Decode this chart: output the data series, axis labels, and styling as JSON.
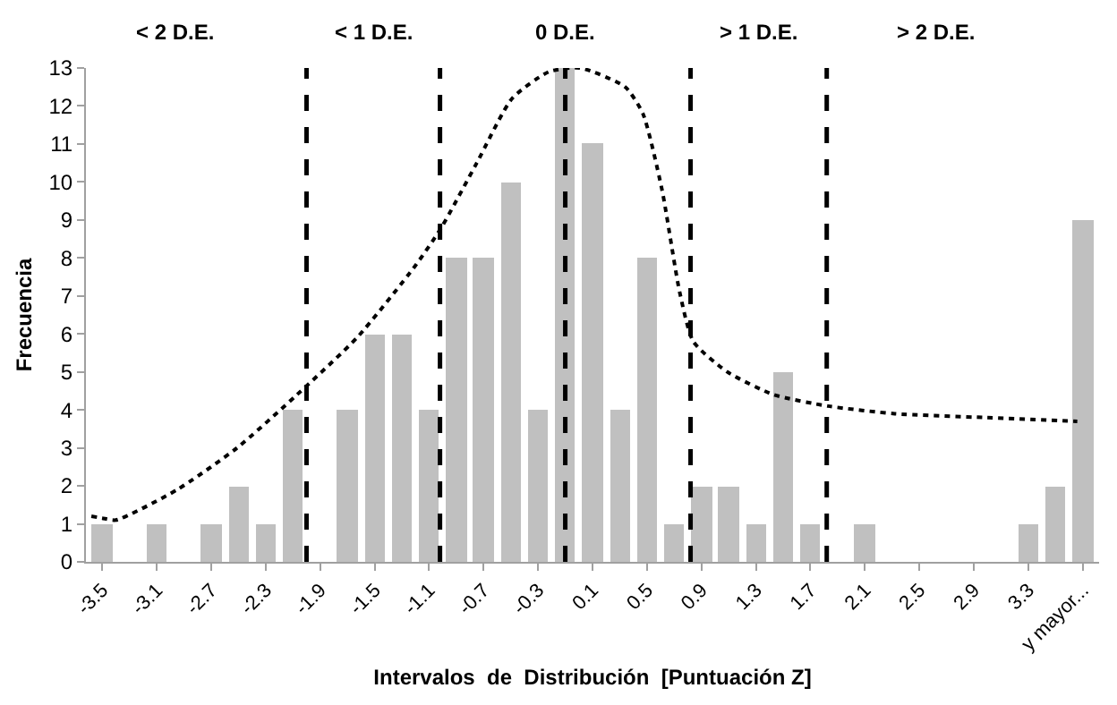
{
  "chart_data": {
    "type": "bar",
    "xlabel": "Intervalos  de  Distribución  [Puntuación Z]",
    "ylabel": "Frecuencia",
    "x": [
      -3.5,
      -3.3,
      -3.1,
      -2.9,
      -2.7,
      -2.5,
      -2.3,
      -2.1,
      -1.9,
      -1.7,
      -1.5,
      -1.3,
      -1.1,
      -0.9,
      -0.7,
      -0.5,
      -0.3,
      -0.1,
      0.1,
      0.3,
      0.5,
      0.7,
      0.9,
      1.1,
      1.3,
      1.5,
      1.7,
      1.9,
      2.1,
      2.3,
      2.5,
      2.7,
      2.9,
      3.1,
      3.3,
      3.5,
      3.7
    ],
    "series": [
      {
        "color": "#c0c0c0",
        "values": [
          1,
          0,
          1,
          0,
          1,
          2,
          1,
          4,
          0,
          4,
          6,
          6,
          4,
          8,
          8,
          10,
          4,
          13,
          11,
          4,
          8,
          1,
          2,
          2,
          1,
          5,
          1,
          0,
          1,
          0,
          0,
          0,
          0,
          0,
          1,
          2,
          9
        ]
      },
      {
        "type": "line",
        "color": "#000000",
        "line_style": "dotted",
        "x": [
          -3.58,
          -3.5,
          -3.4,
          -2.95,
          -2.51,
          -2.07,
          -1.63,
          -1.2,
          -1.01,
          -0.75,
          -0.49,
          -0.22,
          0.01,
          0.34,
          0.47,
          0.61,
          0.74,
          0.84,
          1.09,
          1.43,
          1.83,
          2.32,
          2.97,
          3.66
        ],
        "values": [
          1.2,
          1.15,
          1.1,
          1.9,
          3.0,
          4.4,
          5.9,
          7.8,
          8.8,
          10.5,
          12.2,
          12.9,
          13,
          12.5,
          11.8,
          9.8,
          7.1,
          5.8,
          5.0,
          4.4,
          4.1,
          3.9,
          3.8,
          3.7
        ]
      }
    ],
    "xlim": [
      -3.62,
      3.82
    ],
    "xticks": [
      -3.5,
      -3.1,
      -2.7,
      -2.3,
      -1.9,
      -1.5,
      -1.1,
      -0.7,
      -0.3,
      0.1,
      0.5,
      0.9,
      1.3,
      1.7,
      2.1,
      2.5,
      2.9,
      3.3,
      {
        "value": 3.7,
        "label": "y mayor..."
      }
    ],
    "ylim": [
      0,
      13
    ],
    "yticks": [
      0,
      1,
      2,
      3,
      4,
      5,
      6,
      7,
      8,
      9,
      10,
      11,
      12,
      13
    ],
    "ref_lines": [
      {
        "axis": "x",
        "value": -2.0,
        "color": "#000000",
        "line_style": "dashed"
      },
      {
        "axis": "x",
        "value": -1.02,
        "color": "#000000",
        "line_style": "dashed"
      },
      {
        "axis": "x",
        "value": -0.1,
        "color": "#000000",
        "line_style": "dashed"
      },
      {
        "axis": "x",
        "value": 0.82,
        "color": "#000000",
        "line_style": "dashed"
      },
      {
        "axis": "x",
        "value": 1.82,
        "color": "#000000",
        "line_style": "dashed"
      }
    ],
    "annotations": [
      "< 2 D.E.",
      "< 1 D.E.",
      "0 D.E.",
      "> 1 D.E.",
      "> 2 D.E."
    ],
    "grid": false
  }
}
